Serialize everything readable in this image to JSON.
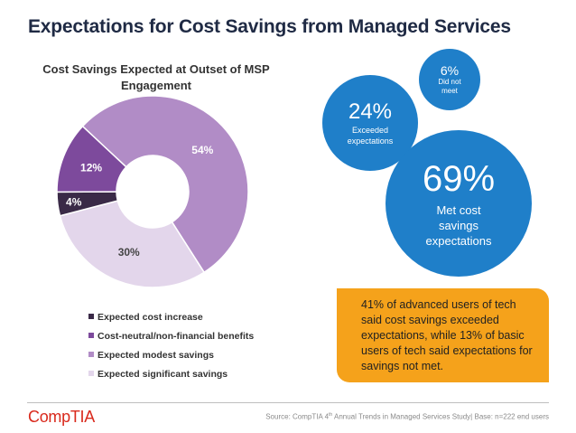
{
  "title": "Expectations for Cost Savings from Managed Services",
  "chart_data": {
    "type": "pie",
    "title": "Cost Savings Expected at Outset of MSP Engagement",
    "categories": [
      "Expected cost increase",
      "Cost-neutral/non-financial benefits",
      "Expected modest savings",
      "Expected significant savings"
    ],
    "values": [
      4,
      12,
      54,
      30
    ],
    "labels": [
      "4%",
      "12%",
      "54%",
      "30%"
    ],
    "colors": [
      "#3a2a47",
      "#7d4a9c",
      "#b18cc6",
      "#e3d6eb"
    ],
    "legend_position": "bottom"
  },
  "bubbles": {
    "did_not_meet": {
      "value": "6%",
      "label": "Did not meet",
      "color": "#1f7fc9"
    },
    "exceeded": {
      "value": "24%",
      "label": "Exceeded expectations",
      "color": "#1f7fc9"
    },
    "met": {
      "value": "69%",
      "label": "Met cost savings expectations",
      "color": "#1f7fc9"
    }
  },
  "callout": "41% of advanced users of tech said cost savings exceeded expectations, while 13% of basic users of tech said expectations for savings not met.",
  "footer": {
    "logo": "CompTIA",
    "source_prefix": "Source: CompTIA 4",
    "source_sup": "th",
    "source_suffix": " Annual Trends in Managed Services Study| Base: n=222 end users"
  }
}
